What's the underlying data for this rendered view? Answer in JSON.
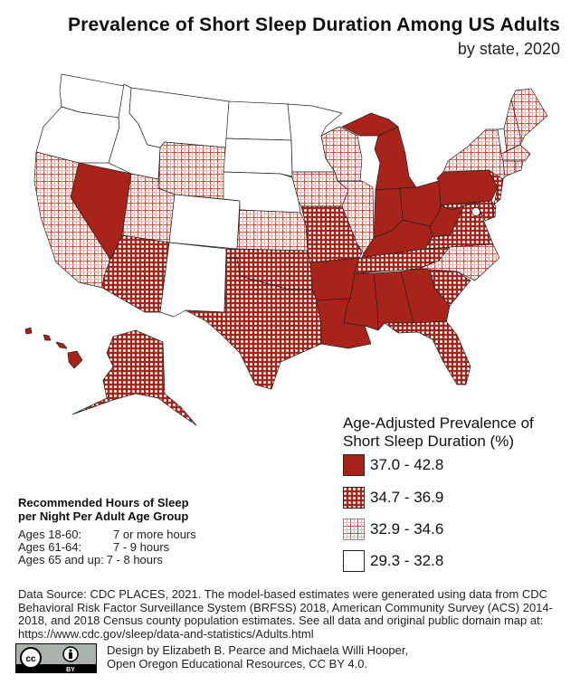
{
  "header": {
    "title": "Prevalence of Short Sleep Duration Among US Adults",
    "subtitle": "by state, 2020"
  },
  "legend": {
    "title_line1": "Age-Adjusted Prevalence of",
    "title_line2": "Short Sleep Duration (%)",
    "classes": [
      {
        "label": "37.0 - 42.8",
        "pattern": "solid"
      },
      {
        "label": "34.7 - 36.9",
        "pattern": "dense-grid"
      },
      {
        "label": "32.9 - 34.6",
        "pattern": "light-grid"
      },
      {
        "label": "29.3 - 32.8",
        "pattern": "none"
      }
    ]
  },
  "colors": {
    "accent": "#a8231a",
    "outline": "#222222",
    "grid_light": "#e3a9a5"
  },
  "state_classes": {
    "NV": 0,
    "MI": 0,
    "OH": 0,
    "IN": 0,
    "KY": 0,
    "WV": 0,
    "PA": 0,
    "AR": 0,
    "LA": 0,
    "MS": 0,
    "AL": 0,
    "GA": 0,
    "HI": 0,
    "AZ": 1,
    "TX": 1,
    "OK": 1,
    "MO": 1,
    "TN": 1,
    "VA": 1,
    "SC": 1,
    "FL": 1,
    "AK": 1,
    "NJ": 1,
    "MD": 1,
    "DE": 1,
    "CA": 2,
    "UT": 2,
    "WY": 2,
    "KS": 2,
    "IA": 2,
    "IL": 2,
    "WI": 2,
    "NC": 2,
    "NY": 2,
    "NH": 2,
    "ME": 2,
    "MA": 2,
    "CT": 2,
    "RI": 2,
    "WA": 3,
    "OR": 3,
    "ID": 3,
    "MT": 3,
    "ND": 3,
    "SD": 3,
    "NE": 3,
    "CO": 3,
    "NM": 3,
    "MN": 3,
    "VT": 3,
    "DC": 3
  },
  "recommended": {
    "heading_line1": "Recommended Hours of Sleep",
    "heading_line2": "per Night Per Adult Age Group",
    "rows": [
      {
        "age": "Ages 18-60:",
        "hours": "7 or more hours"
      },
      {
        "age": "Ages 61-64:",
        "hours": "7 - 9 hours"
      },
      {
        "age": "Ages 65 and up:",
        "hours": "7 - 8 hours"
      }
    ]
  },
  "source": {
    "text": "Data Source: CDC PLACES, 2021. The model-based estimates were generated using data from CDC Behavioral Risk Factor Surveillance System (BRFSS) 2018, American Community Survey (ACS) 2014-2018, and 2018 Census county population estimates. See all data and original public domain map at: https://www.cdc.gov/sleep/data-and-statistics/Adults.html"
  },
  "credit": {
    "line1": "Design by  Elizabeth B. Pearce and Michaela Willi Hooper,",
    "line2": "Open Oregon Educational Resources, CC BY 4.0.",
    "badge": "CC BY"
  }
}
